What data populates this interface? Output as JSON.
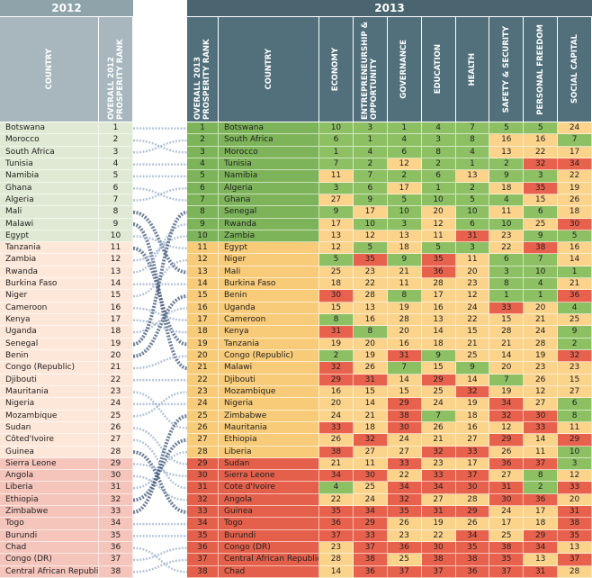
{
  "left": {
    "year": "2012",
    "headers": [
      "COUNTRY",
      "OVERALL 2012 PROSPERITY RANK"
    ],
    "rows": [
      [
        "Botswana",
        1
      ],
      [
        "Morocco",
        2
      ],
      [
        "South Africa",
        3
      ],
      [
        "Tunisia",
        4
      ],
      [
        "Namibia",
        5
      ],
      [
        "Ghana",
        6
      ],
      [
        "Algeria",
        7
      ],
      [
        "Mali",
        8
      ],
      [
        "Malawi",
        9
      ],
      [
        "Egypt",
        10
      ],
      [
        "Tanzania",
        11
      ],
      [
        "Zambia",
        12
      ],
      [
        "Rwanda",
        13
      ],
      [
        "Burkina Faso",
        14
      ],
      [
        "Niger",
        15
      ],
      [
        "Cameroon",
        16
      ],
      [
        "Kenya",
        17
      ],
      [
        "Uganda",
        18
      ],
      [
        "Senegal",
        19
      ],
      [
        "Benin",
        20
      ],
      [
        "Congo (Republic)",
        21
      ],
      [
        "Djibouti",
        22
      ],
      [
        "Mauritania",
        23
      ],
      [
        "Nigeria",
        24
      ],
      [
        "Mozambique",
        25
      ],
      [
        "Sudan",
        26
      ],
      [
        "Côted'Ivoire",
        27
      ],
      [
        "Guinea",
        28
      ],
      [
        "Sierra Leone",
        29
      ],
      [
        "Angola",
        30
      ],
      [
        "Liberia",
        31
      ],
      [
        "Ethiopia",
        32
      ],
      [
        "Zimbabwe",
        33
      ],
      [
        "Togo",
        34
      ],
      [
        "Burundi",
        35
      ],
      [
        "Chad",
        36
      ],
      [
        "Congo (DR)",
        37
      ],
      [
        "Central African Republic",
        38
      ]
    ]
  },
  "right": {
    "year": "2013",
    "headers": [
      "OVERALL 2013 PROSPERITY RANK",
      "COUNTRY",
      "ECONOMY",
      "ENTREPRENEURSHIP & OPPORTUNITY",
      "GOVERNANCE",
      "EDUCATION",
      "HEALTH",
      "SAFETY & SECURITY",
      "PERSONAL FREEDOM",
      "SOCIAL CAPITAL"
    ],
    "rows": [
      [
        1,
        "Botswana",
        10,
        3,
        1,
        4,
        7,
        5,
        5,
        24
      ],
      [
        2,
        "South Africa",
        6,
        1,
        4,
        3,
        8,
        16,
        16,
        7
      ],
      [
        3,
        "Morocco",
        1,
        4,
        6,
        8,
        4,
        13,
        22,
        17
      ],
      [
        4,
        "Tunisia",
        7,
        2,
        12,
        2,
        1,
        2,
        32,
        34
      ],
      [
        5,
        "Namibia",
        11,
        7,
        2,
        6,
        13,
        9,
        3,
        22
      ],
      [
        6,
        "Algeria",
        3,
        6,
        17,
        1,
        2,
        18,
        35,
        19
      ],
      [
        7,
        "Ghana",
        27,
        9,
        5,
        10,
        5,
        4,
        15,
        26
      ],
      [
        8,
        "Senegal",
        9,
        17,
        10,
        20,
        10,
        11,
        6,
        18
      ],
      [
        9,
        "Rwanda",
        17,
        10,
        3,
        12,
        6,
        10,
        25,
        30
      ],
      [
        10,
        "Zambia",
        13,
        12,
        13,
        11,
        31,
        23,
        9,
        5
      ],
      [
        11,
        "Egypt",
        12,
        5,
        18,
        5,
        3,
        22,
        38,
        16
      ],
      [
        12,
        "Niger",
        5,
        35,
        9,
        35,
        11,
        6,
        7,
        14
      ],
      [
        13,
        "Mali",
        25,
        23,
        21,
        36,
        20,
        3,
        10,
        1
      ],
      [
        14,
        "Burkina Faso",
        18,
        22,
        11,
        28,
        23,
        8,
        4,
        21
      ],
      [
        15,
        "Benin",
        30,
        28,
        8,
        17,
        12,
        1,
        1,
        36
      ],
      [
        16,
        "Uganda",
        15,
        13,
        19,
        16,
        24,
        33,
        20,
        4
      ],
      [
        17,
        "Cameroon",
        8,
        16,
        28,
        13,
        22,
        15,
        21,
        25
      ],
      [
        18,
        "Kenya",
        31,
        8,
        20,
        14,
        15,
        28,
        24,
        9
      ],
      [
        19,
        "Tanzania",
        19,
        20,
        16,
        18,
        21,
        21,
        28,
        2
      ],
      [
        20,
        "Congo (Republic)",
        2,
        19,
        31,
        9,
        25,
        14,
        19,
        32
      ],
      [
        21,
        "Malawi",
        32,
        26,
        7,
        15,
        9,
        20,
        23,
        23
      ],
      [
        22,
        "Djibouti",
        29,
        31,
        14,
        29,
        14,
        7,
        26,
        15
      ],
      [
        23,
        "Mozambique",
        16,
        15,
        15,
        25,
        32,
        19,
        12,
        27
      ],
      [
        24,
        "Nigeria",
        20,
        14,
        29,
        24,
        19,
        34,
        27,
        6
      ],
      [
        25,
        "Zimbabwe",
        24,
        21,
        38,
        7,
        18,
        32,
        30,
        8
      ],
      [
        26,
        "Mauritania",
        33,
        18,
        30,
        26,
        16,
        12,
        33,
        11
      ],
      [
        27,
        "Ethiopia",
        26,
        32,
        24,
        21,
        27,
        29,
        14,
        29
      ],
      [
        28,
        "Liberia",
        38,
        27,
        27,
        32,
        33,
        26,
        11,
        10
      ],
      [
        29,
        "Sudan",
        21,
        11,
        33,
        23,
        17,
        36,
        37,
        3
      ],
      [
        30,
        "Sierra Leone",
        34,
        30,
        22,
        33,
        37,
        27,
        8,
        12
      ],
      [
        31,
        "Cote d'Ivoire",
        4,
        25,
        34,
        34,
        30,
        31,
        2,
        33
      ],
      [
        32,
        "Angola",
        22,
        24,
        32,
        27,
        28,
        30,
        36,
        20
      ],
      [
        33,
        "Guinea",
        35,
        34,
        35,
        31,
        29,
        24,
        17,
        31
      ],
      [
        34,
        "Togo",
        36,
        29,
        26,
        19,
        26,
        17,
        18,
        38
      ],
      [
        35,
        "Burundi",
        37,
        33,
        23,
        22,
        34,
        25,
        29,
        35
      ],
      [
        36,
        "Congo (DR)",
        23,
        37,
        36,
        30,
        35,
        38,
        34,
        13
      ],
      [
        37,
        "Central African Republic",
        28,
        38,
        25,
        38,
        38,
        35,
        13,
        37
      ],
      [
        38,
        "Chad",
        14,
        36,
        37,
        37,
        36,
        37,
        31,
        28
      ]
    ]
  }
}
